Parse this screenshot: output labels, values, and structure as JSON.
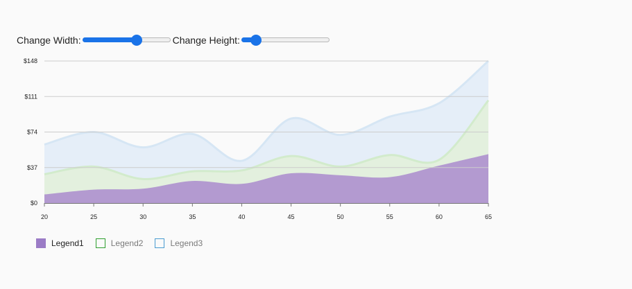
{
  "controls": {
    "width_label": "Change Width:",
    "height_label": "Change Height:",
    "width_value": 0.62,
    "height_value": 0.17
  },
  "colors": {
    "accent": "#1a73e8",
    "legend1": "#9b7cc6",
    "legend2": "#2e9e2e",
    "legend3": "#4a9bd0",
    "gridline": "#cccccc"
  },
  "chart_data": {
    "type": "area",
    "stacked": true,
    "x": [
      20,
      25,
      30,
      35,
      40,
      45,
      50,
      55,
      60,
      65
    ],
    "x_ticks": [
      "20",
      "25",
      "30",
      "35",
      "40",
      "45",
      "50",
      "55",
      "60",
      "65"
    ],
    "y_ticks": [
      "$0",
      "$37",
      "$74",
      "$111",
      "$148"
    ],
    "y_tick_values": [
      0,
      37,
      74,
      111,
      148
    ],
    "ylim": [
      0,
      148
    ],
    "xlim": [
      20,
      65
    ],
    "series": [
      {
        "name": "Legend1",
        "values": [
          9,
          14,
          15,
          23,
          20,
          31,
          29,
          27,
          39,
          51
        ]
      },
      {
        "name": "Legend2",
        "values": [
          21,
          24,
          10,
          10,
          14,
          18,
          9,
          23,
          6,
          56
        ]
      },
      {
        "name": "Legend3",
        "values": [
          31,
          36,
          33,
          39,
          10,
          39,
          33,
          40,
          59,
          41
        ]
      }
    ],
    "legend": [
      "Legend1",
      "Legend2",
      "Legend3"
    ],
    "legend_position": "bottom-left",
    "grid": true
  }
}
